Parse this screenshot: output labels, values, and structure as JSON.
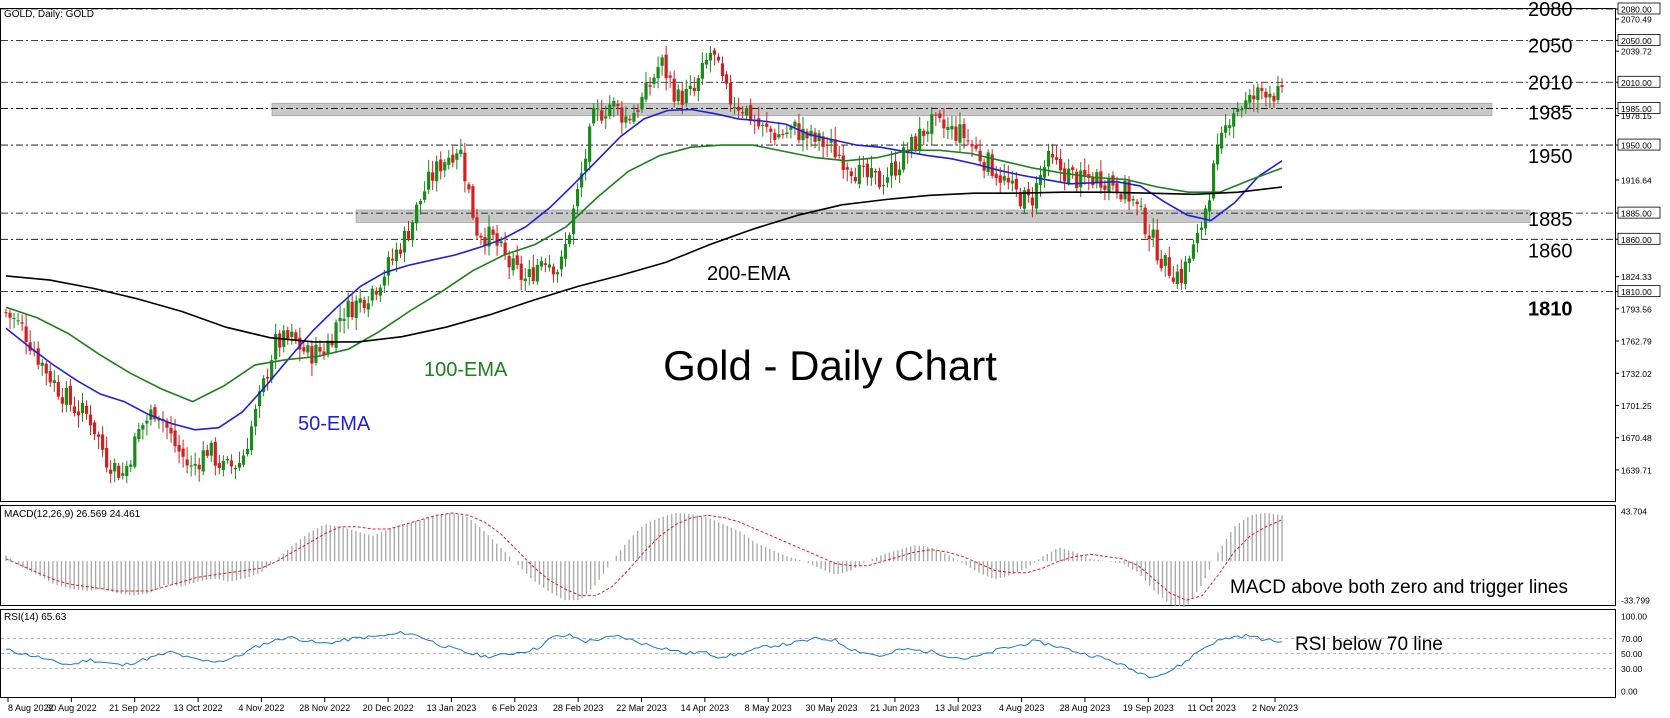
{
  "chart_data": {
    "type": "candlestick",
    "header": "GOLD, Daily: GOLD",
    "title": "Gold - Daily Chart",
    "ylim": [
      1610,
      2080
    ],
    "price_ticks": [
      "2080.00",
      "2070.49",
      "2050.00",
      "2039.72",
      "2010.00",
      "1985.00",
      "1978.15",
      "1950.00",
      "1916.64",
      "1885.00",
      "1860.00",
      "1824.33",
      "1810.00",
      "1793.56",
      "1762.79",
      "1732.02",
      "1701.25",
      "1670.48",
      "1639.71"
    ],
    "highlighted_ticks": [
      "2080.00",
      "2050.00",
      "2010.00",
      "1985.00",
      "1950.00",
      "1885.00",
      "1860.00",
      "1810.00"
    ],
    "levels": [
      {
        "value": 2080,
        "label": "2080",
        "bold": false
      },
      {
        "value": 2050,
        "label": "2050",
        "bold": false
      },
      {
        "value": 2010,
        "label": "2010",
        "bold": false
      },
      {
        "value": 1985,
        "label": "1985",
        "bold": false
      },
      {
        "value": 1950,
        "label": "1950",
        "bold": false
      },
      {
        "value": 1885,
        "label": "1885",
        "bold": false
      },
      {
        "value": 1860,
        "label": "1860",
        "bold": false
      },
      {
        "value": 1810,
        "label": "1810",
        "bold": true
      }
    ],
    "zones": [
      {
        "from": 1978,
        "to": 1990
      },
      {
        "from": 1876,
        "to": 1888
      }
    ],
    "x_labels": [
      "8 Aug 2022",
      "30 Aug 2022",
      "21 Sep 2022",
      "13 Oct 2022",
      "4 Nov 2022",
      "28 Nov 2022",
      "20 Dec 2022",
      "13 Jan 2023",
      "6 Feb 2023",
      "28 Feb 2023",
      "22 Mar 2023",
      "14 Apr 2023",
      "8 May 2023",
      "30 May 2023",
      "21 Jun 2023",
      "13 Jul 2023",
      "4 Aug 2023",
      "28 Aug 2023",
      "19 Sep 2023",
      "11 Oct 2023",
      "2 Nov 2023"
    ],
    "price_path": [
      1790,
      1775,
      1745,
      1720,
      1700,
      1690,
      1650,
      1635,
      1680,
      1700,
      1665,
      1640,
      1660,
      1640,
      1648,
      1700,
      1760,
      1765,
      1750,
      1755,
      1790,
      1800,
      1815,
      1840,
      1870,
      1910,
      1935,
      1950,
      1870,
      1860,
      1835,
      1820,
      1845,
      1830,
      1900,
      1975,
      1990,
      1975,
      1995,
      2030,
      1995,
      2000,
      2040,
      1995,
      1985,
      1965,
      1960,
      1965,
      1955,
      1950,
      1935,
      1920,
      1915,
      1930,
      1950,
      1970,
      1965,
      1960,
      1940,
      1925,
      1905,
      1895,
      1935,
      1925,
      1915,
      1920,
      1915,
      1900,
      1870,
      1835,
      1825,
      1860,
      1930,
      1985,
      1990,
      2005,
      1995
    ],
    "ema": [
      {
        "name": "50-EMA",
        "color": "#1f1fdc",
        "values": [
          1775,
          1757,
          1740,
          1725,
          1712,
          1705,
          1693,
          1684,
          1678,
          1680,
          1695,
          1720,
          1747,
          1773,
          1795,
          1815,
          1828,
          1835,
          1840,
          1845,
          1852,
          1860,
          1872,
          1890,
          1912,
          1935,
          1958,
          1975,
          1983,
          1984,
          1980,
          1975,
          1973,
          1970,
          1960,
          1955,
          1950,
          1948,
          1944,
          1940,
          1937,
          1932,
          1926,
          1921,
          1917,
          1913,
          1914,
          1915,
          1911,
          1896,
          1883,
          1878,
          1895,
          1920,
          1935
        ]
      },
      {
        "name": "100-EMA",
        "color": "#1d801d",
        "values": [
          1795,
          1785,
          1770,
          1750,
          1732,
          1717,
          1705,
          1720,
          1740,
          1745,
          1748,
          1755,
          1772,
          1792,
          1810,
          1830,
          1845,
          1855,
          1872,
          1900,
          1925,
          1940,
          1948,
          1950,
          1950,
          1944,
          1938,
          1935,
          1938,
          1945,
          1945,
          1942,
          1935,
          1928,
          1923,
          1919,
          1917,
          1910,
          1905,
          1905,
          1917,
          1928
        ]
      },
      {
        "name": "200-EMA",
        "color": "#000000",
        "values": [
          1825,
          1821,
          1813,
          1803,
          1791,
          1776,
          1766,
          1762,
          1762,
          1767,
          1776,
          1788,
          1802,
          1815,
          1826,
          1838,
          1855,
          1870,
          1883,
          1893,
          1898,
          1902,
          1904,
          1904,
          1905,
          1905,
          1904,
          1903,
          1905,
          1910
        ]
      }
    ],
    "macd": {
      "label": "MACD(12,26,9) 26.569 24.461",
      "ylim": [
        -33.799,
        43.704
      ],
      "ticks": [
        "43.704",
        "-33.799"
      ],
      "histogram": [
        5,
        -5,
        -12,
        -20,
        -24,
        -26,
        -24,
        -28,
        -30,
        -28,
        -20,
        -22,
        -18,
        -15,
        -18,
        -15,
        -10,
        2,
        14,
        25,
        32,
        30,
        26,
        22,
        28,
        32,
        36,
        40,
        42,
        38,
        26,
        12,
        -2,
        -16,
        -26,
        -34,
        -34,
        -20,
        0,
        18,
        32,
        38,
        42,
        41,
        38,
        32,
        26,
        16,
        10,
        4,
        0,
        -6,
        -12,
        -8,
        0,
        6,
        10,
        14,
        12,
        6,
        -2,
        -10,
        -16,
        -12,
        -6,
        4,
        12,
        8,
        2,
        0,
        -2,
        -10,
        -26,
        -38,
        -40,
        -20,
        8,
        30,
        40,
        42,
        40
      ],
      "signal": [
        2,
        -4,
        -10,
        -16,
        -20,
        -22,
        -24,
        -26,
        -26,
        -26,
        -22,
        -18,
        -14,
        -12,
        -10,
        -8,
        -6,
        0,
        8,
        16,
        24,
        30,
        30,
        28,
        28,
        32,
        36,
        40,
        42,
        40,
        34,
        24,
        10,
        -4,
        -16,
        -24,
        -30,
        -30,
        -22,
        -8,
        8,
        22,
        32,
        38,
        40,
        38,
        34,
        28,
        22,
        16,
        10,
        4,
        -2,
        -4,
        -4,
        0,
        4,
        8,
        10,
        8,
        4,
        -2,
        -8,
        -10,
        -10,
        -6,
        0,
        4,
        6,
        4,
        2,
        -4,
        -16,
        -28,
        -34,
        -30,
        -12,
        8,
        22,
        30,
        36
      ]
    },
    "rsi": {
      "label": "RSI(14) 65.63",
      "ylim": [
        0,
        100
      ],
      "ticks": [
        "100.00",
        "70.00",
        "50.00",
        "30.00",
        "0.00"
      ],
      "values": [
        55,
        50,
        45,
        38,
        35,
        42,
        38,
        34,
        40,
        46,
        52,
        44,
        40,
        40,
        46,
        58,
        66,
        72,
        68,
        63,
        66,
        70,
        72,
        74,
        78,
        73,
        63,
        56,
        50,
        46,
        48,
        52,
        56,
        72,
        74,
        66,
        70,
        73,
        66,
        60,
        56,
        50,
        52,
        46,
        48,
        54,
        60,
        62,
        66,
        70,
        68,
        56,
        50,
        46,
        56,
        54,
        52,
        46,
        43,
        48,
        56,
        60,
        66,
        62,
        56,
        50,
        45,
        38,
        28,
        20,
        24,
        36,
        54,
        66,
        72,
        74,
        68,
        65.63
      ]
    },
    "annotations": [
      {
        "text": "200-EMA",
        "color": "#000000"
      },
      {
        "text": "100-EMA",
        "color": "#1d801d"
      },
      {
        "text": "50-EMA",
        "color": "#1f1fdc"
      },
      {
        "text": "MACD above both zero and trigger lines",
        "color": "#000000"
      },
      {
        "text": "RSI below 70 line",
        "color": "#000000"
      }
    ],
    "colors": {
      "up": "#1a8a1a",
      "down": "#d02020",
      "macd_hist": "#a6a6a6",
      "macd_signal": "#e02020",
      "rsi_line": "#1a78d4",
      "zone": "#c8c8c8"
    }
  }
}
